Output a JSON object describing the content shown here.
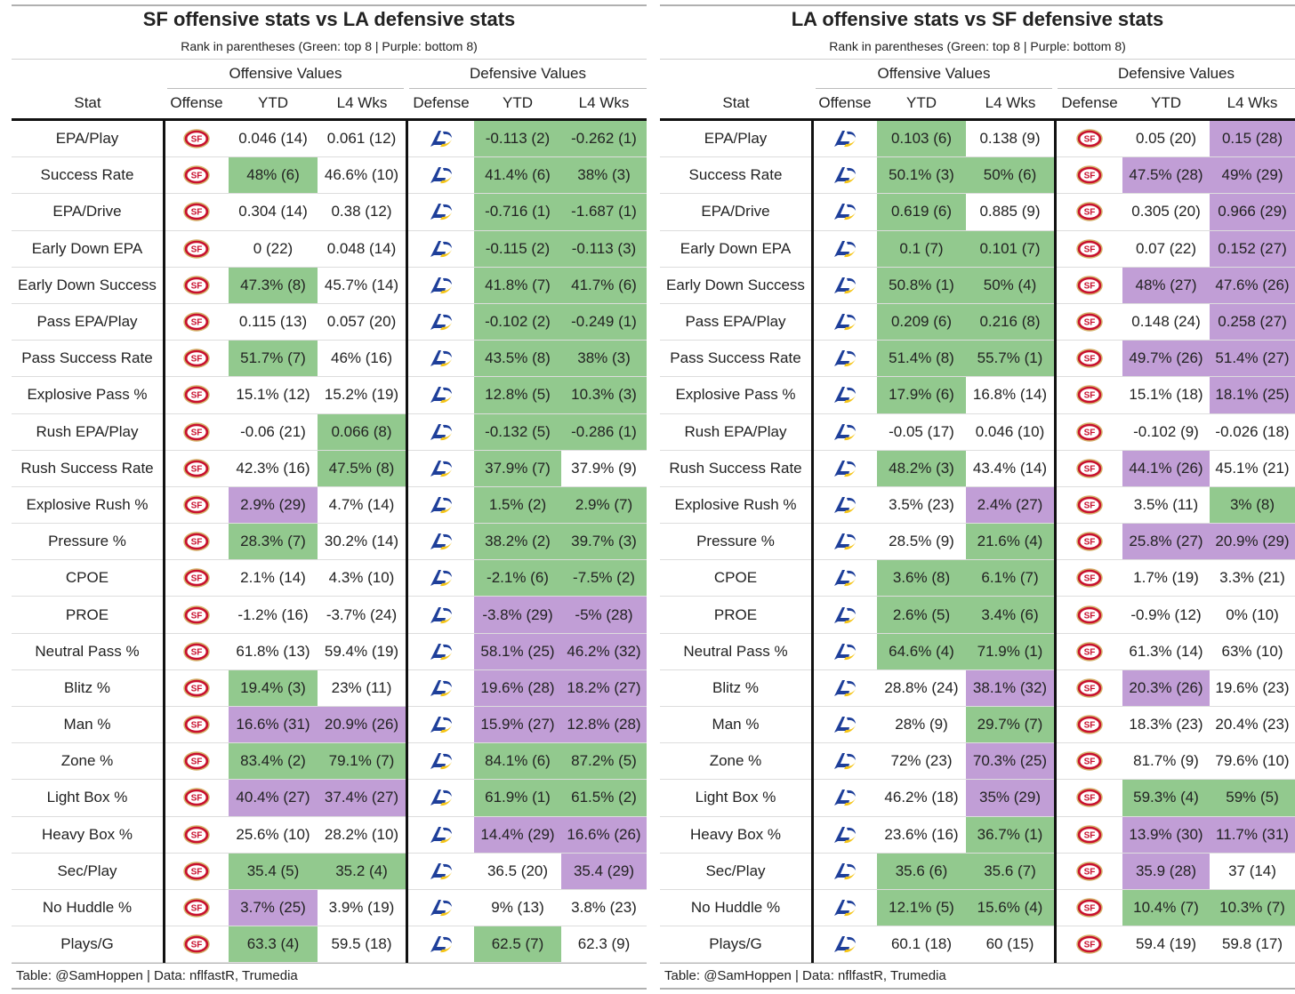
{
  "colors": {
    "green": "#92c98e",
    "purple": "#c19ed6",
    "sf_red": "#c8102e",
    "sf_gold": "#d4b36a",
    "la_blue": "#1e3f9a",
    "la_gold": "#f5c518"
  },
  "tables": [
    {
      "title": "SF offensive stats vs LA defensive stats",
      "subtitle": "Rank in parentheses (Green: top 8 | Purple: bottom 8)",
      "group_offense": "Offensive Values",
      "group_defense": "Defensive Values",
      "col_stat": "Stat",
      "col_offense": "Offense",
      "col_off_ytd": "YTD",
      "col_off_l4": "L4 Wks",
      "col_defense": "Defense",
      "col_def_ytd": "YTD",
      "col_def_l4": "L4 Wks",
      "offense_logo": "sf-logo-icon",
      "defense_logo": "la-logo-icon",
      "footer": "Table: @SamHoppen | Data: nflfastR, Trumedia",
      "rows": [
        {
          "stat": "EPA/Play",
          "oy": "0.046 (14)",
          "oyc": "",
          "ol": "0.061 (12)",
          "olc": "",
          "dy": "-0.113 (2)",
          "dyc": "green",
          "dl": "-0.262 (1)",
          "dlc": "green"
        },
        {
          "stat": "Success Rate",
          "oy": "48% (6)",
          "oyc": "green",
          "ol": "46.6% (10)",
          "olc": "",
          "dy": "41.4% (6)",
          "dyc": "green",
          "dl": "38% (3)",
          "dlc": "green"
        },
        {
          "stat": "EPA/Drive",
          "oy": "0.304 (14)",
          "oyc": "",
          "ol": "0.38 (12)",
          "olc": "",
          "dy": "-0.716 (1)",
          "dyc": "green",
          "dl": "-1.687 (1)",
          "dlc": "green"
        },
        {
          "stat": "Early Down EPA",
          "oy": "0 (22)",
          "oyc": "",
          "ol": "0.048 (14)",
          "olc": "",
          "dy": "-0.115 (2)",
          "dyc": "green",
          "dl": "-0.113 (3)",
          "dlc": "green"
        },
        {
          "stat": "Early Down Success",
          "oy": "47.3% (8)",
          "oyc": "green",
          "ol": "45.7% (14)",
          "olc": "",
          "dy": "41.8% (7)",
          "dyc": "green",
          "dl": "41.7% (6)",
          "dlc": "green"
        },
        {
          "stat": "Pass EPA/Play",
          "oy": "0.115 (13)",
          "oyc": "",
          "ol": "0.057 (20)",
          "olc": "",
          "dy": "-0.102 (2)",
          "dyc": "green",
          "dl": "-0.249 (1)",
          "dlc": "green"
        },
        {
          "stat": "Pass Success Rate",
          "oy": "51.7% (7)",
          "oyc": "green",
          "ol": "46% (16)",
          "olc": "",
          "dy": "43.5% (8)",
          "dyc": "green",
          "dl": "38% (3)",
          "dlc": "green"
        },
        {
          "stat": "Explosive Pass %",
          "oy": "15.1% (12)",
          "oyc": "",
          "ol": "15.2% (19)",
          "olc": "",
          "dy": "12.8% (5)",
          "dyc": "green",
          "dl": "10.3% (3)",
          "dlc": "green"
        },
        {
          "stat": "Rush EPA/Play",
          "oy": "-0.06 (21)",
          "oyc": "",
          "ol": "0.066 (8)",
          "olc": "green",
          "dy": "-0.132 (5)",
          "dyc": "green",
          "dl": "-0.286 (1)",
          "dlc": "green"
        },
        {
          "stat": "Rush Success Rate",
          "oy": "42.3% (16)",
          "oyc": "",
          "ol": "47.5% (8)",
          "olc": "green",
          "dy": "37.9% (7)",
          "dyc": "green",
          "dl": "37.9% (9)",
          "dlc": ""
        },
        {
          "stat": "Explosive Rush %",
          "oy": "2.9% (29)",
          "oyc": "purple",
          "ol": "4.7% (14)",
          "olc": "",
          "dy": "1.5% (2)",
          "dyc": "green",
          "dl": "2.9% (7)",
          "dlc": "green"
        },
        {
          "stat": "Pressure %",
          "oy": "28.3% (7)",
          "oyc": "green",
          "ol": "30.2% (14)",
          "olc": "",
          "dy": "38.2% (2)",
          "dyc": "green",
          "dl": "39.7% (3)",
          "dlc": "green"
        },
        {
          "stat": "CPOE",
          "oy": "2.1% (14)",
          "oyc": "",
          "ol": "4.3% (10)",
          "olc": "",
          "dy": "-2.1% (6)",
          "dyc": "green",
          "dl": "-7.5% (2)",
          "dlc": "green"
        },
        {
          "stat": "PROE",
          "oy": "-1.2% (16)",
          "oyc": "",
          "ol": "-3.7% (24)",
          "olc": "",
          "dy": "-3.8% (29)",
          "dyc": "purple",
          "dl": "-5% (28)",
          "dlc": "purple"
        },
        {
          "stat": "Neutral Pass %",
          "oy": "61.8% (13)",
          "oyc": "",
          "ol": "59.4% (19)",
          "olc": "",
          "dy": "58.1% (25)",
          "dyc": "purple",
          "dl": "46.2% (32)",
          "dlc": "purple"
        },
        {
          "stat": "Blitz %",
          "oy": "19.4% (3)",
          "oyc": "green",
          "ol": "23% (11)",
          "olc": "",
          "dy": "19.6% (28)",
          "dyc": "purple",
          "dl": "18.2% (27)",
          "dlc": "purple"
        },
        {
          "stat": "Man %",
          "oy": "16.6% (31)",
          "oyc": "purple",
          "ol": "20.9% (26)",
          "olc": "purple",
          "dy": "15.9% (27)",
          "dyc": "purple",
          "dl": "12.8% (28)",
          "dlc": "purple"
        },
        {
          "stat": "Zone %",
          "oy": "83.4% (2)",
          "oyc": "green",
          "ol": "79.1% (7)",
          "olc": "green",
          "dy": "84.1% (6)",
          "dyc": "green",
          "dl": "87.2% (5)",
          "dlc": "green"
        },
        {
          "stat": "Light Box %",
          "oy": "40.4% (27)",
          "oyc": "purple",
          "ol": "37.4% (27)",
          "olc": "purple",
          "dy": "61.9% (1)",
          "dyc": "green",
          "dl": "61.5% (2)",
          "dlc": "green"
        },
        {
          "stat": "Heavy Box %",
          "oy": "25.6% (10)",
          "oyc": "",
          "ol": "28.2% (10)",
          "olc": "",
          "dy": "14.4% (29)",
          "dyc": "purple",
          "dl": "16.6% (26)",
          "dlc": "purple"
        },
        {
          "stat": "Sec/Play",
          "oy": "35.4 (5)",
          "oyc": "green",
          "ol": "35.2 (4)",
          "olc": "green",
          "dy": "36.5 (20)",
          "dyc": "",
          "dl": "35.4 (29)",
          "dlc": "purple"
        },
        {
          "stat": "No Huddle %",
          "oy": "3.7% (25)",
          "oyc": "purple",
          "ol": "3.9% (19)",
          "olc": "",
          "dy": "9% (13)",
          "dyc": "",
          "dl": "3.8% (23)",
          "dlc": ""
        },
        {
          "stat": "Plays/G",
          "oy": "63.3 (4)",
          "oyc": "green",
          "ol": "59.5 (18)",
          "olc": "",
          "dy": "62.5 (7)",
          "dyc": "green",
          "dl": "62.3 (9)",
          "dlc": ""
        }
      ]
    },
    {
      "title": "LA offensive stats vs SF defensive stats",
      "subtitle": "Rank in parentheses (Green: top 8 | Purple: bottom 8)",
      "group_offense": "Offensive Values",
      "group_defense": "Defensive Values",
      "col_stat": "Stat",
      "col_offense": "Offense",
      "col_off_ytd": "YTD",
      "col_off_l4": "L4 Wks",
      "col_defense": "Defense",
      "col_def_ytd": "YTD",
      "col_def_l4": "L4 Wks",
      "offense_logo": "la-logo-icon",
      "defense_logo": "sf-logo-icon",
      "footer": "Table: @SamHoppen | Data: nflfastR, Trumedia",
      "rows": [
        {
          "stat": "EPA/Play",
          "oy": "0.103 (6)",
          "oyc": "green",
          "ol": "0.138 (9)",
          "olc": "",
          "dy": "0.05 (20)",
          "dyc": "",
          "dl": "0.15 (28)",
          "dlc": "purple"
        },
        {
          "stat": "Success Rate",
          "oy": "50.1% (3)",
          "oyc": "green",
          "ol": "50% (6)",
          "olc": "green",
          "dy": "47.5% (28)",
          "dyc": "purple",
          "dl": "49% (29)",
          "dlc": "purple"
        },
        {
          "stat": "EPA/Drive",
          "oy": "0.619 (6)",
          "oyc": "green",
          "ol": "0.885 (9)",
          "olc": "",
          "dy": "0.305 (20)",
          "dyc": "",
          "dl": "0.966 (29)",
          "dlc": "purple"
        },
        {
          "stat": "Early Down EPA",
          "oy": "0.1 (7)",
          "oyc": "green",
          "ol": "0.101 (7)",
          "olc": "green",
          "dy": "0.07 (22)",
          "dyc": "",
          "dl": "0.152 (27)",
          "dlc": "purple"
        },
        {
          "stat": "Early Down Success",
          "oy": "50.8% (1)",
          "oyc": "green",
          "ol": "50% (4)",
          "olc": "green",
          "dy": "48% (27)",
          "dyc": "purple",
          "dl": "47.6% (26)",
          "dlc": "purple"
        },
        {
          "stat": "Pass EPA/Play",
          "oy": "0.209 (6)",
          "oyc": "green",
          "ol": "0.216 (8)",
          "olc": "green",
          "dy": "0.148 (24)",
          "dyc": "",
          "dl": "0.258 (27)",
          "dlc": "purple"
        },
        {
          "stat": "Pass Success Rate",
          "oy": "51.4% (8)",
          "oyc": "green",
          "ol": "55.7% (1)",
          "olc": "green",
          "dy": "49.7% (26)",
          "dyc": "purple",
          "dl": "51.4% (27)",
          "dlc": "purple"
        },
        {
          "stat": "Explosive Pass %",
          "oy": "17.9% (6)",
          "oyc": "green",
          "ol": "16.8% (14)",
          "olc": "",
          "dy": "15.1% (18)",
          "dyc": "",
          "dl": "18.1% (25)",
          "dlc": "purple"
        },
        {
          "stat": "Rush EPA/Play",
          "oy": "-0.05 (17)",
          "oyc": "",
          "ol": "0.046 (10)",
          "olc": "",
          "dy": "-0.102 (9)",
          "dyc": "",
          "dl": "-0.026 (18)",
          "dlc": ""
        },
        {
          "stat": "Rush Success Rate",
          "oy": "48.2% (3)",
          "oyc": "green",
          "ol": "43.4% (14)",
          "olc": "",
          "dy": "44.1% (26)",
          "dyc": "purple",
          "dl": "45.1% (21)",
          "dlc": ""
        },
        {
          "stat": "Explosive Rush %",
          "oy": "3.5% (23)",
          "oyc": "",
          "ol": "2.4% (27)",
          "olc": "purple",
          "dy": "3.5% (11)",
          "dyc": "",
          "dl": "3% (8)",
          "dlc": "green"
        },
        {
          "stat": "Pressure %",
          "oy": "28.5% (9)",
          "oyc": "",
          "ol": "21.6% (4)",
          "olc": "green",
          "dy": "25.8% (27)",
          "dyc": "purple",
          "dl": "20.9% (29)",
          "dlc": "purple"
        },
        {
          "stat": "CPOE",
          "oy": "3.6% (8)",
          "oyc": "green",
          "ol": "6.1% (7)",
          "olc": "green",
          "dy": "1.7% (19)",
          "dyc": "",
          "dl": "3.3% (21)",
          "dlc": ""
        },
        {
          "stat": "PROE",
          "oy": "2.6% (5)",
          "oyc": "green",
          "ol": "3.4% (6)",
          "olc": "green",
          "dy": "-0.9% (12)",
          "dyc": "",
          "dl": "0% (10)",
          "dlc": ""
        },
        {
          "stat": "Neutral Pass %",
          "oy": "64.6% (4)",
          "oyc": "green",
          "ol": "71.9% (1)",
          "olc": "green",
          "dy": "61.3% (14)",
          "dyc": "",
          "dl": "63% (10)",
          "dlc": ""
        },
        {
          "stat": "Blitz %",
          "oy": "28.8% (24)",
          "oyc": "",
          "ol": "38.1% (32)",
          "olc": "purple",
          "dy": "20.3% (26)",
          "dyc": "purple",
          "dl": "19.6% (23)",
          "dlc": ""
        },
        {
          "stat": "Man %",
          "oy": "28% (9)",
          "oyc": "",
          "ol": "29.7% (7)",
          "olc": "green",
          "dy": "18.3% (23)",
          "dyc": "",
          "dl": "20.4% (23)",
          "dlc": ""
        },
        {
          "stat": "Zone %",
          "oy": "72% (23)",
          "oyc": "",
          "ol": "70.3% (25)",
          "olc": "purple",
          "dy": "81.7% (9)",
          "dyc": "",
          "dl": "79.6% (10)",
          "dlc": ""
        },
        {
          "stat": "Light Box %",
          "oy": "46.2% (18)",
          "oyc": "",
          "ol": "35% (29)",
          "olc": "purple",
          "dy": "59.3% (4)",
          "dyc": "green",
          "dl": "59% (5)",
          "dlc": "green"
        },
        {
          "stat": "Heavy Box %",
          "oy": "23.6% (16)",
          "oyc": "",
          "ol": "36.7% (1)",
          "olc": "green",
          "dy": "13.9% (30)",
          "dyc": "purple",
          "dl": "11.7% (31)",
          "dlc": "purple"
        },
        {
          "stat": "Sec/Play",
          "oy": "35.6 (6)",
          "oyc": "green",
          "ol": "35.6 (7)",
          "olc": "green",
          "dy": "35.9 (28)",
          "dyc": "purple",
          "dl": "37 (14)",
          "dlc": ""
        },
        {
          "stat": "No Huddle %",
          "oy": "12.1% (5)",
          "oyc": "green",
          "ol": "15.6% (4)",
          "olc": "green",
          "dy": "10.4% (7)",
          "dyc": "green",
          "dl": "10.3% (7)",
          "dlc": "green"
        },
        {
          "stat": "Plays/G",
          "oy": "60.1 (18)",
          "oyc": "",
          "ol": "60 (15)",
          "olc": "",
          "dy": "59.4 (19)",
          "dyc": "",
          "dl": "59.8 (17)",
          "dlc": ""
        }
      ]
    }
  ]
}
